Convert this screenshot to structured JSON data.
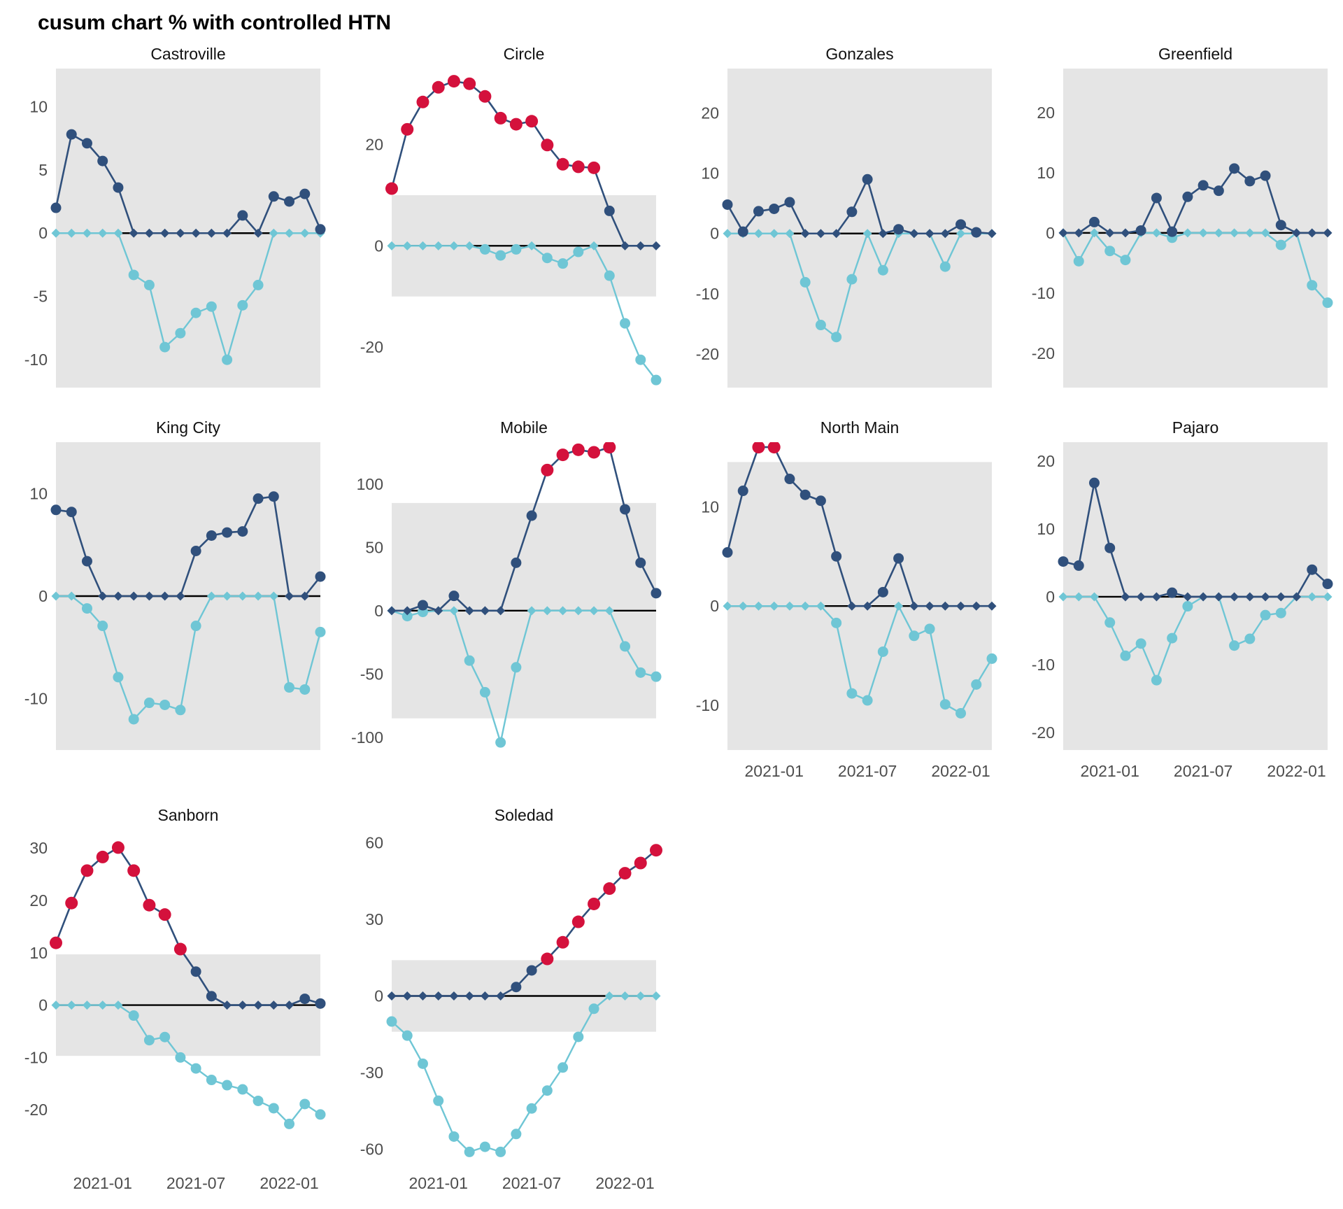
{
  "title": "cusum chart % with controlled HTN",
  "colors": {
    "upper_series": "#30507C",
    "lower_series": "#6FC6D5",
    "signal_point": "#D4113C",
    "control_band": "#E5E5E5",
    "zero_line": "#000000",
    "axis_text": "#4D4D4D",
    "panel_title_text": "#111111"
  },
  "x_axis": {
    "dates": [
      "2020-10",
      "2020-11",
      "2020-12",
      "2021-01",
      "2021-02",
      "2021-03",
      "2021-04",
      "2021-05",
      "2021-06",
      "2021-07",
      "2021-08",
      "2021-09",
      "2021-10",
      "2021-11",
      "2021-12",
      "2022-01",
      "2022-02",
      "2022-03"
    ],
    "tick_indices": [
      3,
      9,
      15
    ],
    "tick_labels": [
      "2021-01",
      "2021-07",
      "2022-01"
    ]
  },
  "chart_data": [
    {
      "type": "line",
      "name": "Castroville",
      "row": 1,
      "show_x_labels": false,
      "ylim": [
        -12.2,
        13.0
      ],
      "yticks": [
        10,
        5,
        0,
        -5,
        -10
      ],
      "band": [
        -13,
        13
      ],
      "series": [
        {
          "name": "upper",
          "values": [
            2.0,
            7.8,
            7.1,
            5.7,
            3.6,
            0,
            0,
            0,
            0,
            0,
            0,
            0,
            1.4,
            0,
            2.9,
            2.5,
            3.1,
            0.3
          ]
        },
        {
          "name": "lower",
          "values": [
            0,
            0,
            0,
            0,
            0,
            -3.3,
            -4.1,
            -9.0,
            -7.9,
            -6.3,
            -5.8,
            -10.0,
            -5.7,
            -4.1,
            0,
            0,
            0,
            0
          ]
        }
      ],
      "signal_indices": []
    },
    {
      "type": "line",
      "name": "Circle",
      "row": 1,
      "show_x_labels": false,
      "ylim": [
        -28,
        35
      ],
      "yticks": [
        20,
        0,
        -20
      ],
      "band": [
        -10,
        10
      ],
      "series": [
        {
          "name": "upper",
          "values": [
            11.3,
            23.0,
            28.4,
            31.3,
            32.5,
            32.0,
            29.5,
            25.2,
            24.0,
            24.6,
            19.9,
            16.1,
            15.6,
            15.4,
            6.9,
            0,
            0,
            0
          ]
        },
        {
          "name": "lower",
          "values": [
            0,
            0,
            0,
            0,
            0,
            0,
            -0.7,
            -1.9,
            -0.7,
            0,
            -2.4,
            -3.5,
            -1.2,
            0,
            -5.9,
            -15.3,
            -22.5,
            -26.5
          ]
        }
      ],
      "signal_indices": [
        0,
        1,
        2,
        3,
        4,
        5,
        6,
        7,
        8,
        9,
        10,
        11,
        12,
        13
      ]
    },
    {
      "type": "line",
      "name": "Gonzales",
      "row": 1,
      "show_x_labels": false,
      "ylim": [
        -25.6,
        27.4
      ],
      "yticks": [
        20,
        10,
        0,
        -10,
        -20
      ],
      "band": [
        -26,
        28
      ],
      "series": [
        {
          "name": "upper",
          "values": [
            4.8,
            0.3,
            3.7,
            4.1,
            5.2,
            0,
            0,
            0,
            3.6,
            9.0,
            0,
            0.7,
            0,
            0,
            0,
            1.5,
            0.2,
            0
          ]
        },
        {
          "name": "lower",
          "values": [
            0,
            0,
            0,
            0,
            0,
            -8.1,
            -15.2,
            -17.2,
            -7.6,
            0,
            -6.1,
            0,
            0,
            0,
            -5.5,
            0,
            0,
            0
          ]
        }
      ],
      "signal_indices": []
    },
    {
      "type": "line",
      "name": "Greenfield",
      "row": 1,
      "show_x_labels": false,
      "ylim": [
        -25.7,
        27.3
      ],
      "yticks": [
        20,
        10,
        0,
        -10,
        -20
      ],
      "band": [
        -26,
        28
      ],
      "series": [
        {
          "name": "upper",
          "values": [
            0,
            0,
            1.8,
            0,
            0,
            0.4,
            5.8,
            0.2,
            6.0,
            7.9,
            7.0,
            10.7,
            8.6,
            9.5,
            1.3,
            0,
            0,
            0
          ]
        },
        {
          "name": "lower",
          "values": [
            0,
            -4.7,
            0,
            -3.0,
            -4.5,
            0,
            0,
            -0.8,
            0,
            0,
            0,
            0,
            0,
            0,
            -2.0,
            0,
            -8.7,
            -11.6
          ]
        }
      ],
      "signal_indices": []
    },
    {
      "type": "line",
      "name": "King City",
      "row": 2,
      "show_x_labels": false,
      "ylim": [
        -15,
        15
      ],
      "yticks": [
        10,
        0,
        -10
      ],
      "band": [
        -15.5,
        15.5
      ],
      "series": [
        {
          "name": "upper",
          "values": [
            8.4,
            8.2,
            3.4,
            0,
            0,
            0,
            0,
            0,
            0,
            4.4,
            5.9,
            6.2,
            6.3,
            9.5,
            9.7,
            0,
            0,
            1.9
          ]
        },
        {
          "name": "lower",
          "values": [
            0,
            0,
            -1.2,
            -2.9,
            -7.9,
            -12.0,
            -10.4,
            -10.6,
            -11.1,
            -2.9,
            0,
            0,
            0,
            0,
            0,
            -8.9,
            -9.1,
            -3.5
          ]
        }
      ],
      "signal_indices": []
    },
    {
      "type": "line",
      "name": "Mobile",
      "row": 2,
      "show_x_labels": false,
      "ylim": [
        -110,
        133
      ],
      "yticks": [
        100,
        50,
        0,
        -50,
        -100
      ],
      "band": [
        -85,
        85
      ],
      "series": [
        {
          "name": "upper",
          "values": [
            0,
            0,
            4.3,
            0,
            11.7,
            0,
            0,
            0,
            37.8,
            75.0,
            111.0,
            123.0,
            127.0,
            125.0,
            129.0,
            80.0,
            37.8,
            13.8
          ]
        },
        {
          "name": "lower",
          "values": [
            0,
            -4.3,
            -1.0,
            0,
            0,
            -39.4,
            -64.4,
            -104.0,
            -44.7,
            0,
            0,
            0,
            0,
            0,
            0,
            -28.2,
            -48.9,
            -52.1
          ]
        }
      ],
      "signal_indices": [
        10,
        11,
        12,
        13,
        14
      ]
    },
    {
      "type": "line",
      "name": "North Main",
      "row": 2,
      "show_x_labels": true,
      "ylim": [
        -14.5,
        16.5
      ],
      "yticks": [
        10,
        0,
        -10
      ],
      "band": [
        -14.6,
        14.5
      ],
      "series": [
        {
          "name": "upper",
          "values": [
            5.4,
            11.6,
            16.0,
            16.0,
            12.8,
            11.2,
            10.6,
            5.0,
            0,
            0,
            1.4,
            4.8,
            0,
            0,
            0,
            0,
            0,
            0
          ]
        },
        {
          "name": "lower",
          "values": [
            0,
            0,
            0,
            0,
            0,
            0,
            0,
            -1.7,
            -8.8,
            -9.5,
            -4.6,
            0,
            -3.0,
            -2.3,
            -9.9,
            -10.8,
            -7.9,
            -5.3
          ]
        }
      ],
      "signal_indices": [
        2,
        3
      ]
    },
    {
      "type": "line",
      "name": "Pajaro",
      "row": 2,
      "show_x_labels": true,
      "ylim": [
        -22.6,
        22.8
      ],
      "yticks": [
        20,
        10,
        0,
        -10,
        -20
      ],
      "band": [
        -23,
        23
      ],
      "series": [
        {
          "name": "upper",
          "values": [
            5.2,
            4.6,
            16.8,
            7.2,
            0,
            0,
            0,
            0.6,
            0,
            0,
            0,
            0,
            0,
            0,
            0,
            0,
            4.0,
            1.9
          ]
        },
        {
          "name": "lower",
          "values": [
            0,
            0,
            0,
            -3.8,
            -8.7,
            -6.9,
            -12.3,
            -6.1,
            -1.4,
            0,
            0,
            -7.2,
            -6.2,
            -2.7,
            -2.4,
            0,
            0,
            0
          ]
        }
      ],
      "signal_indices": []
    },
    {
      "type": "line",
      "name": "Sanborn",
      "row": 3,
      "show_x_labels": true,
      "ylim": [
        -30,
        33.5
      ],
      "yticks": [
        30,
        20,
        10,
        0,
        -10,
        -20
      ],
      "band": [
        -9.7,
        9.7
      ],
      "series": [
        {
          "name": "upper",
          "values": [
            11.9,
            19.5,
            25.7,
            28.3,
            30.1,
            25.7,
            19.1,
            17.3,
            10.7,
            6.4,
            1.7,
            0,
            0,
            0,
            0,
            0,
            1.2,
            0.3
          ]
        },
        {
          "name": "lower",
          "values": [
            0,
            0,
            0,
            0,
            0,
            -2.0,
            -6.7,
            -6.1,
            -10.0,
            -12.1,
            -14.3,
            -15.3,
            -16.1,
            -18.3,
            -19.7,
            -22.7,
            -18.9,
            -20.9
          ]
        }
      ],
      "signal_indices": [
        0,
        1,
        2,
        3,
        4,
        5,
        6,
        7,
        8
      ]
    },
    {
      "type": "line",
      "name": "Soledad",
      "row": 3,
      "show_x_labels": true,
      "ylim": [
        -65,
        65
      ],
      "yticks": [
        60,
        30,
        0,
        -30,
        -60
      ],
      "band": [
        -14,
        14
      ],
      "series": [
        {
          "name": "upper",
          "values": [
            0,
            0,
            0,
            0,
            0,
            0,
            0,
            0,
            3.5,
            10.0,
            14.5,
            21.0,
            29.0,
            36.0,
            42.0,
            48.0,
            52.0,
            57.0
          ]
        },
        {
          "name": "lower",
          "values": [
            -10.0,
            -15.5,
            -26.5,
            -41.0,
            -55.0,
            -61.0,
            -59.0,
            -61.0,
            -54.0,
            -44.0,
            -37.0,
            -28.0,
            -16.0,
            -5.0,
            0,
            0,
            0,
            0
          ]
        }
      ],
      "signal_indices": [
        10,
        11,
        12,
        13,
        14,
        15,
        16,
        17
      ]
    }
  ]
}
